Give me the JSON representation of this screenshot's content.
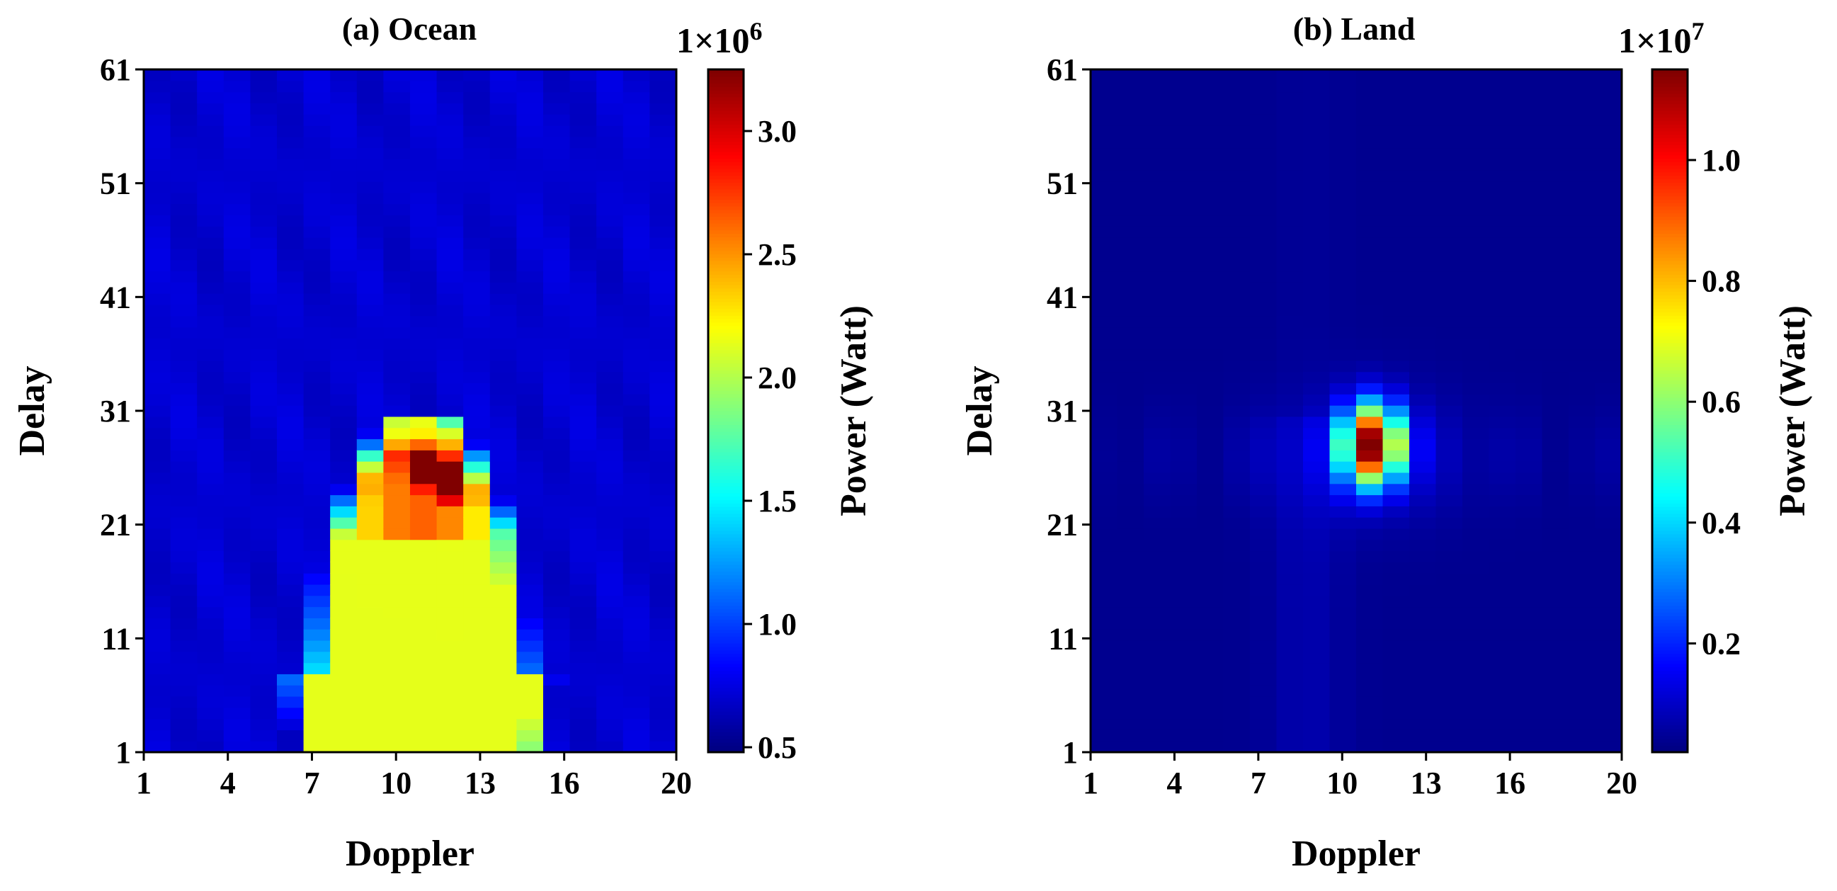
{
  "chart_data": [
    {
      "type": "heatmap",
      "title": "(a) Ocean",
      "xlabel": "Doppler",
      "ylabel": "Delay",
      "x_range": [
        1,
        20
      ],
      "y_range": [
        1,
        61
      ],
      "xticks": [
        "1",
        "4",
        "7",
        "10",
        "13",
        "16",
        "20"
      ],
      "yticks": [
        "1",
        "11",
        "21",
        "31",
        "41",
        "51",
        "61"
      ],
      "colorbar": {
        "label": "Power (Watt)",
        "exponent_base": "1×10",
        "exponent_power": "6",
        "range": [
          0.48,
          3.25
        ],
        "ticks": [
          "0.5",
          "1.0",
          "1.5",
          "2.0",
          "2.5",
          "3.0"
        ],
        "colormap": "jet"
      },
      "peak": {
        "doppler": 11,
        "delay": 26,
        "value": 3.25
      }
    },
    {
      "type": "heatmap",
      "title": "(b) Land",
      "xlabel": "Doppler",
      "ylabel": "Delay",
      "x_range": [
        1,
        20
      ],
      "y_range": [
        1,
        61
      ],
      "xticks": [
        "1",
        "4",
        "7",
        "10",
        "13",
        "16",
        "20"
      ],
      "yticks": [
        "1",
        "11",
        "21",
        "31",
        "41",
        "51",
        "61"
      ],
      "colorbar": {
        "label": "Power (Watt)",
        "exponent_base": "1×10",
        "exponent_power": "7",
        "range": [
          0.02,
          1.15
        ],
        "ticks": [
          "0.2",
          "0.4",
          "0.6",
          "0.8",
          "1.0"
        ],
        "colormap": "jet"
      },
      "peak": {
        "doppler": 11,
        "delay": 28,
        "value": 1.15
      }
    }
  ]
}
